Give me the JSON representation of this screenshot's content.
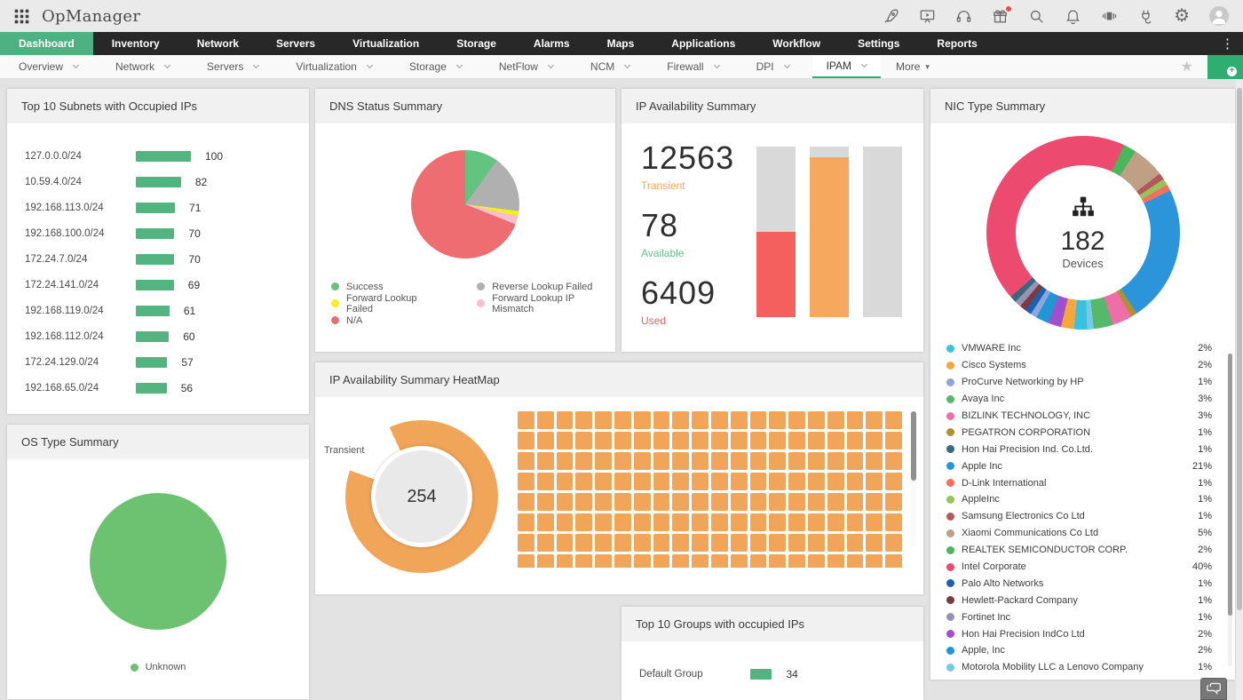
{
  "app": {
    "name": "OpManager"
  },
  "topbar": {
    "icons": [
      "apps-grid",
      "rocket",
      "presentation-play",
      "headset",
      "gift",
      "search",
      "bell",
      "video-wall",
      "plug",
      "gear",
      "user-avatar"
    ]
  },
  "mainnav": {
    "active": "Dashboard",
    "items": [
      "Dashboard",
      "Inventory",
      "Network",
      "Servers",
      "Virtualization",
      "Storage",
      "Alarms",
      "Maps",
      "Applications",
      "Workflow",
      "Settings",
      "Reports"
    ]
  },
  "subnav": {
    "active": "IPAM",
    "items": [
      "Overview",
      "Network",
      "Servers",
      "Virtualization",
      "Storage",
      "NetFlow",
      "NCM",
      "Firewall",
      "DPI",
      "IPAM"
    ],
    "more_label": "More"
  },
  "widgets": {
    "top_subnets": {
      "title": "Top 10 Subnets with Occupied IPs",
      "chart": {
        "type": "bar",
        "orientation": "horizontal",
        "bar_color": "#52b47e",
        "categories": [
          "127.0.0.0/24",
          "10.59.4.0/24",
          "192.168.113.0/24",
          "192.168.100.0/24",
          "172.24.7.0/24",
          "172.24.141.0/24",
          "192.168.119.0/24",
          "192.168.112.0/24",
          "172.24.129.0/24",
          "192.168.65.0/24"
        ],
        "values": [
          100,
          82,
          71,
          70,
          70,
          69,
          61,
          60,
          57,
          56
        ]
      }
    },
    "dns_status": {
      "title": "DNS Status Summary",
      "chart": {
        "type": "pie",
        "slices": [
          {
            "label": "Success",
            "value": 10,
            "color": "#62c47f"
          },
          {
            "label": "Reverse Lookup Failed",
            "value": 17,
            "color": "#b0b0b0"
          },
          {
            "label": "Forward Lookup Failed",
            "value": 1.5,
            "color": "#f8ec27"
          },
          {
            "label": "Forward Lookup IP Mismatch",
            "value": 2.5,
            "color": "#f7becd"
          },
          {
            "label": "N/A",
            "value": 69,
            "color": "#ed6d71"
          }
        ]
      },
      "legend_columns": [
        [
          "Success",
          "Forward Lookup Failed",
          "N/A"
        ],
        [
          "Reverse Lookup Failed",
          "Forward Lookup IP Mismatch"
        ]
      ]
    },
    "ip_availability": {
      "title": "IP Availability Summary",
      "stats": [
        {
          "value": "12563",
          "label": "Transient",
          "color": "#f0a35e"
        },
        {
          "value": "78",
          "label": "Available",
          "color": "#67c08f"
        },
        {
          "value": "6409",
          "label": "Used",
          "color": "#f2605c"
        }
      ],
      "bars": [
        {
          "fill_color": "#f4605d",
          "fill_pct": 50
        },
        {
          "fill_color": "#f5a85e",
          "fill_pct": 94
        },
        {
          "fill_color": "#d9d9d9",
          "fill_pct": 0
        }
      ]
    },
    "nic_type": {
      "title": "NIC Type Summary",
      "center": {
        "value": "182",
        "label": "Devices"
      },
      "donut_start_deg": 25,
      "donut_order": [
        12,
        11,
        10,
        9,
        8,
        7,
        5,
        4,
        3,
        19,
        0,
        1,
        17,
        18,
        2,
        14,
        15,
        16,
        6,
        13
      ],
      "legend": [
        {
          "name": "VMWARE Inc",
          "pct": 2,
          "color": "#3bc1e0"
        },
        {
          "name": "Cisco Systems",
          "pct": 2,
          "color": "#f5a63d"
        },
        {
          "name": "ProCurve Networking by HP",
          "pct": 1,
          "color": "#8ca6dc"
        },
        {
          "name": "Avaya Inc",
          "pct": 3,
          "color": "#57b86b"
        },
        {
          "name": "BIZLINK TECHNOLOGY, INC",
          "pct": 3,
          "color": "#ef6ea8"
        },
        {
          "name": "PEGATRON CORPORATION",
          "pct": 1,
          "color": "#b09032"
        },
        {
          "name": "Hon Hai Precision Ind. Co.Ltd.",
          "pct": 1,
          "color": "#38697d"
        },
        {
          "name": "Apple Inc",
          "pct": 21,
          "color": "#2c95da"
        },
        {
          "name": "D-Link International",
          "pct": 1,
          "color": "#f4705a"
        },
        {
          "name": "AppleInc",
          "pct": 1,
          "color": "#97c35b"
        },
        {
          "name": "Samsung Electronics Co Ltd",
          "pct": 1,
          "color": "#b4575a"
        },
        {
          "name": "Xiaomi Communications Co Ltd",
          "pct": 5,
          "color": "#bfa084"
        },
        {
          "name": "REALTEK SEMICONDUCTOR CORP.",
          "pct": 2,
          "color": "#4cb75a"
        },
        {
          "name": "Intel Corporate",
          "pct": 40,
          "color": "#ec4a6e"
        },
        {
          "name": "Palo Alto Networks",
          "pct": 1,
          "color": "#1c61ad"
        },
        {
          "name": "Hewlett-Packard Company",
          "pct": 1,
          "color": "#7a3b45"
        },
        {
          "name": "Fortinet Inc",
          "pct": 1,
          "color": "#9992b5"
        },
        {
          "name": "Hon Hai Precision IndCo Ltd",
          "pct": 2,
          "color": "#a14ed0"
        },
        {
          "name": "Apple, Inc",
          "pct": 2,
          "color": "#2196d3"
        },
        {
          "name": "Motorola Mobility LLC a Lenovo Company",
          "pct": 1,
          "color": "#72cce8"
        }
      ]
    },
    "os_type": {
      "title": "OS Type Summary",
      "chart": {
        "type": "pie",
        "slices": [
          {
            "label": "Unknown",
            "value": 100,
            "color": "#6cc271"
          }
        ]
      }
    },
    "heatmap": {
      "title": "IP Availability Summary HeatMap",
      "gauge": {
        "value": "254",
        "label": "Transient",
        "color": "#f0a558",
        "start_deg": 335,
        "fill_deg": 315
      },
      "grid": {
        "columns": 20,
        "rows": 8,
        "cell_color": "#f0a558"
      }
    },
    "top_groups": {
      "title": "Top 10 Groups with occupied IPs",
      "chart": {
        "type": "bar",
        "orientation": "horizontal",
        "bar_color": "#52b47e",
        "categories": [
          "Default Group"
        ],
        "values": [
          34
        ]
      }
    }
  }
}
